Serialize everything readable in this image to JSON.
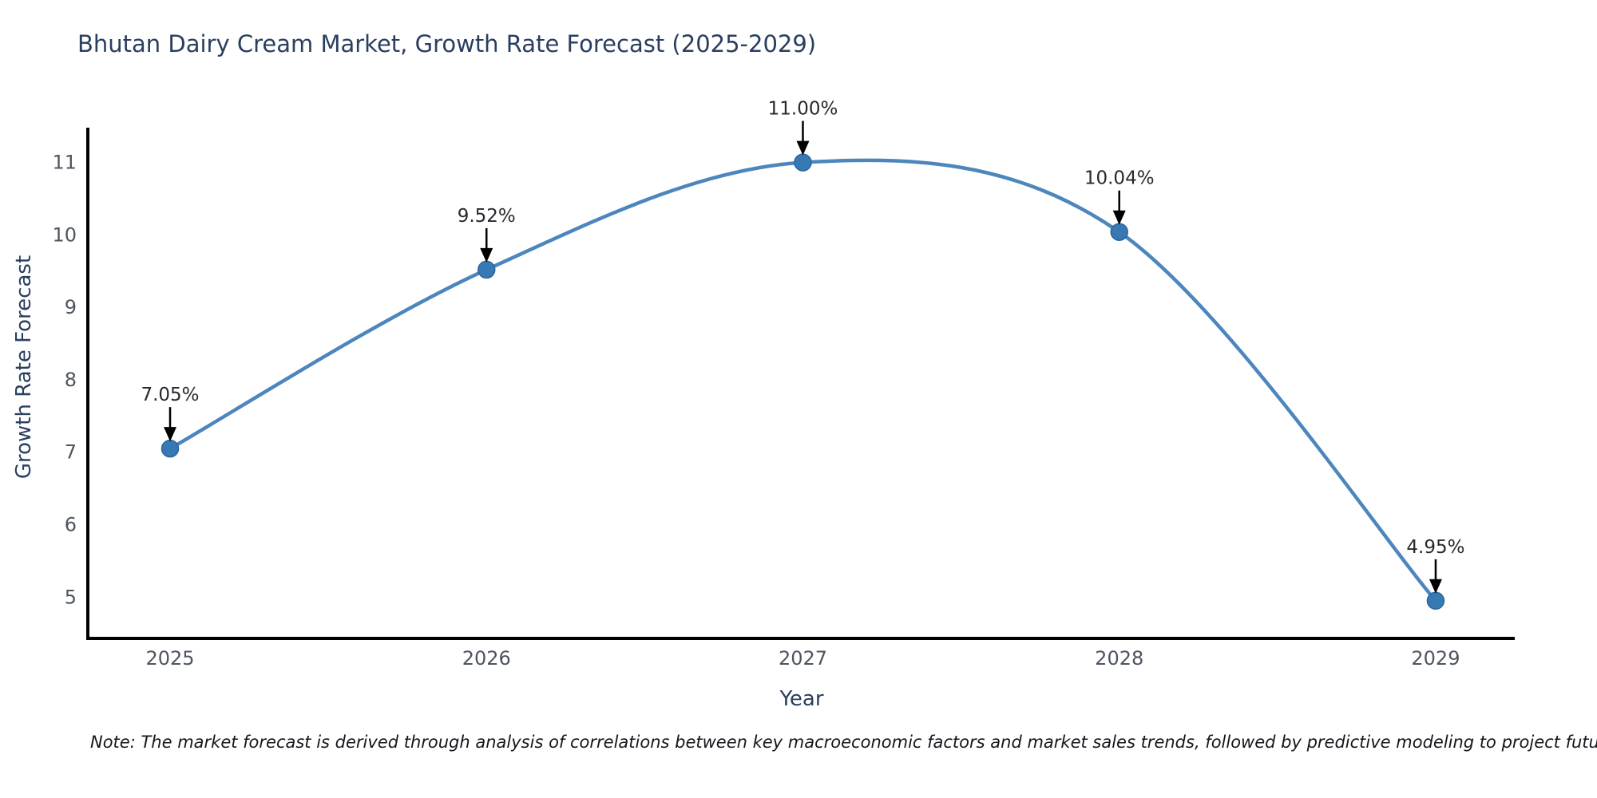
{
  "chart_data": {
    "type": "line",
    "title": "Bhutan Dairy Cream Market, Growth Rate Forecast (2025-2029)",
    "xlabel": "Year",
    "ylabel": "Growth Rate Forecast",
    "x": [
      2025,
      2026,
      2027,
      2028,
      2029
    ],
    "y": [
      7.05,
      9.52,
      11.0,
      10.04,
      4.95
    ],
    "point_labels": [
      "7.05%",
      "9.52%",
      "11.00%",
      "10.04%",
      "4.95%"
    ],
    "series_name": "Growth Rate Forecast",
    "yticks": [
      5,
      6,
      7,
      8,
      9,
      10,
      11
    ],
    "xticks": [
      2025,
      2026,
      2027,
      2028,
      2029
    ],
    "ylim": [
      4.43,
      11.48
    ],
    "xlim": [
      2024.74,
      2029.25
    ],
    "line_shape": "spline",
    "grid": false,
    "legend_position": "none",
    "note": "Note: The market forecast is derived through analysis of correlations between key macroeconomic factors and market sales trends, followed by predictive modeling to project future sales",
    "colors": {
      "line": "#4c86bd",
      "marker": "#3679b5",
      "marker_edge": "#2d639a",
      "axis": "#000000",
      "title_text": "#2a3f5f",
      "tick_text": "#4d5560",
      "annotation_text": "#26292e",
      "arrow": "#000000",
      "background": "#ffffff"
    }
  }
}
